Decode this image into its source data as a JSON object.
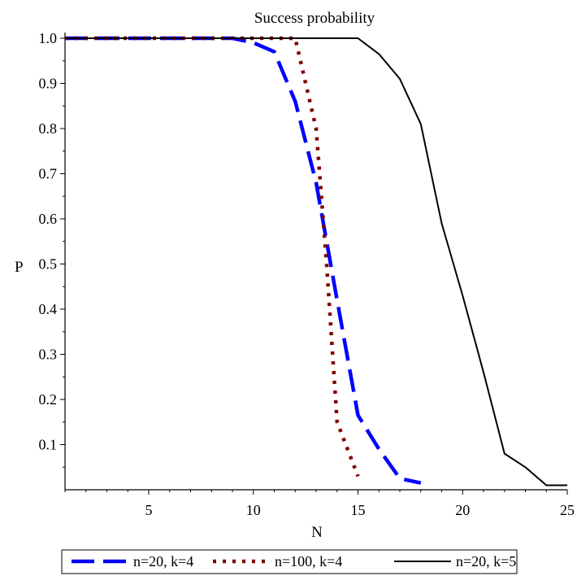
{
  "chart_data": {
    "type": "line",
    "title": "Success probability",
    "xlabel": "N",
    "ylabel": "P",
    "xlim": [
      1,
      25
    ],
    "ylim": [
      0,
      1.0
    ],
    "xticks": [
      5,
      10,
      15,
      20,
      25
    ],
    "yticks": [
      0.1,
      0.2,
      0.3,
      0.4,
      0.5,
      0.6,
      0.7,
      0.8,
      0.9,
      1.0
    ],
    "xtick_labels": [
      "5",
      "10",
      "15",
      "20",
      "25"
    ],
    "ytick_labels": [
      "0.1",
      "0.2",
      "0.3",
      "0.4",
      "0.5",
      "0.6",
      "0.7",
      "0.8",
      "0.9",
      "1.0"
    ],
    "legend_position": "bottom",
    "grid": false,
    "series": [
      {
        "name": "n=20, k=4",
        "color": "#0000ff",
        "style": "dash",
        "x": [
          1,
          2,
          3,
          4,
          5,
          6,
          7,
          8,
          9,
          10,
          11,
          12,
          13,
          14,
          15,
          16,
          17,
          18
        ],
        "y": [
          1.0,
          1.0,
          1.0,
          1.0,
          1.0,
          1.0,
          1.0,
          1.0,
          1.0,
          0.99,
          0.97,
          0.86,
          0.68,
          0.42,
          0.165,
          0.09,
          0.025,
          0.015
        ]
      },
      {
        "name": "n=100, k=4",
        "color": "#800000",
        "style": "dot",
        "x": [
          1,
          2,
          3,
          4,
          5,
          6,
          7,
          8,
          9,
          10,
          11,
          12,
          13,
          13.5,
          14,
          15
        ],
        "y": [
          1.0,
          1.0,
          1.0,
          1.0,
          1.0,
          1.0,
          1.0,
          1.0,
          1.0,
          1.0,
          1.0,
          1.0,
          0.8,
          0.5,
          0.15,
          0.03
        ]
      },
      {
        "name": "n=20, k=5",
        "color": "#000000",
        "style": "solid",
        "x": [
          1,
          2,
          3,
          4,
          5,
          6,
          7,
          8,
          9,
          10,
          11,
          12,
          13,
          14,
          15,
          16,
          17,
          18,
          19,
          20,
          21,
          22,
          23,
          24,
          25
        ],
        "y": [
          1.0,
          1.0,
          1.0,
          1.0,
          1.0,
          1.0,
          1.0,
          1.0,
          1.0,
          1.0,
          1.0,
          1.0,
          1.0,
          1.0,
          1.0,
          0.965,
          0.91,
          0.81,
          0.59,
          0.43,
          0.26,
          0.08,
          0.05,
          0.01,
          0.01
        ]
      }
    ]
  }
}
